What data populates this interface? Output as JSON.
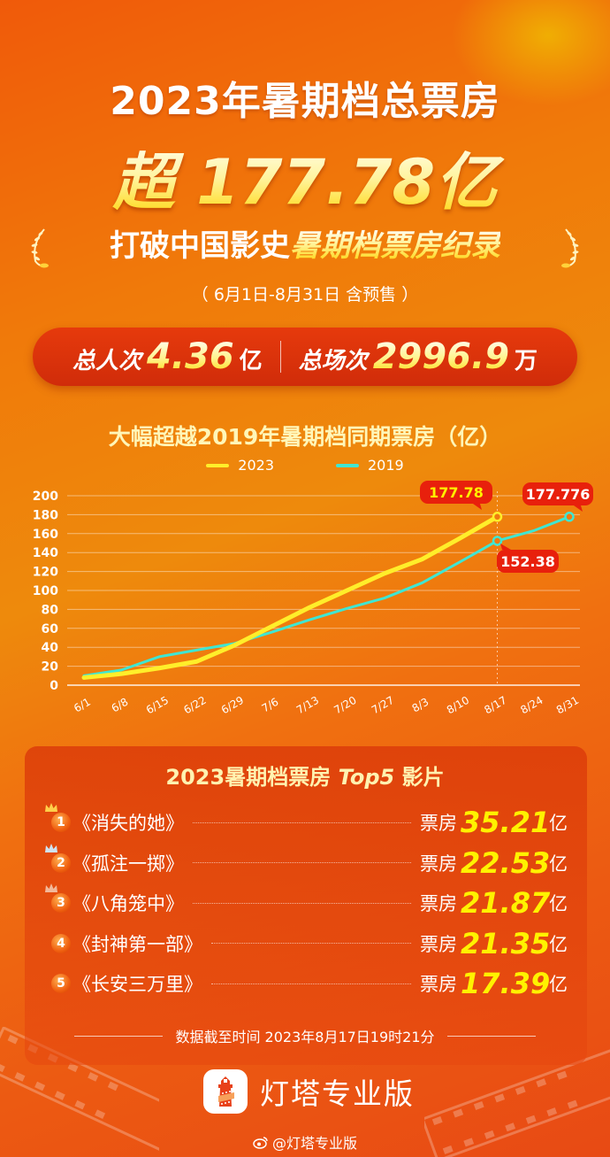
{
  "header": {
    "title": "2023年暑期档总票房",
    "headline": "超 177.78亿",
    "record_prefix": "打破中国影史",
    "record_highlight": "暑期档票房纪录",
    "period": "（ 6月1日-8月31日 含预售 ）"
  },
  "stats": {
    "admissions_label": "总人次",
    "admissions_value": "4.36",
    "admissions_unit": "亿",
    "screenings_label": "总场次",
    "screenings_value": "2996.9",
    "screenings_unit": "万"
  },
  "chart": {
    "title": "大幅超越2019年暑期档同期票房（亿）",
    "legend": [
      {
        "label": "2023",
        "color": "#ffee2a"
      },
      {
        "label": "2019",
        "color": "#3fe6d2"
      }
    ],
    "callouts": {
      "c2023_end": "177.78",
      "c2019_same": "152.38",
      "c2019_end": "177.776"
    }
  },
  "chart_data": {
    "type": "line",
    "title": "大幅超越2019年暑期档同期票房（亿）",
    "xlabel": "",
    "ylabel": "票房（亿）",
    "ylim": [
      0,
      200
    ],
    "yticks": [
      0,
      20,
      40,
      60,
      80,
      100,
      120,
      140,
      160,
      180,
      200
    ],
    "grid": true,
    "legend_position": "top",
    "categories": [
      "6/1",
      "6/8",
      "6/15",
      "6/22",
      "6/29",
      "7/6",
      "7/13",
      "7/20",
      "7/27",
      "8/3",
      "8/10",
      "8/17",
      "8/24",
      "8/31"
    ],
    "series": [
      {
        "name": "2023",
        "color": "#ffee2a",
        "values": [
          8,
          12,
          18,
          25,
          42,
          62,
          82,
          100,
          118,
          133,
          155,
          177.78,
          null,
          null
        ]
      },
      {
        "name": "2019",
        "color": "#3fe6d2",
        "values": [
          10,
          16,
          30,
          37,
          44,
          56,
          69,
          81,
          92,
          108,
          130,
          152.38,
          163,
          177.776
        ]
      }
    ],
    "annotations": [
      {
        "text": "177.78",
        "x": "8/17",
        "series": "2023"
      },
      {
        "text": "152.38",
        "x": "8/17",
        "series": "2019"
      },
      {
        "text": "177.776",
        "x": "8/31",
        "series": "2019"
      }
    ]
  },
  "top5": {
    "title_prefix": "2023暑期档票房 ",
    "title_italic": "Top5",
    "title_suffix": " 影片",
    "box_office_label": "票房",
    "unit": "亿",
    "movies": [
      {
        "rank": "1",
        "name": "《消失的她》",
        "value": "35.21"
      },
      {
        "rank": "2",
        "name": "《孤注一掷》",
        "value": "22.53"
      },
      {
        "rank": "3",
        "name": "《八角笼中》",
        "value": "21.87"
      },
      {
        "rank": "4",
        "name": "《封神第一部》",
        "value": "21.35"
      },
      {
        "rank": "5",
        "name": "《长安三万里》",
        "value": "17.39"
      }
    ]
  },
  "footer": {
    "cutoff": "数据截至时间 2023年8月17日19时21分",
    "brand": "灯塔专业版",
    "weibo": "@灯塔专业版"
  }
}
